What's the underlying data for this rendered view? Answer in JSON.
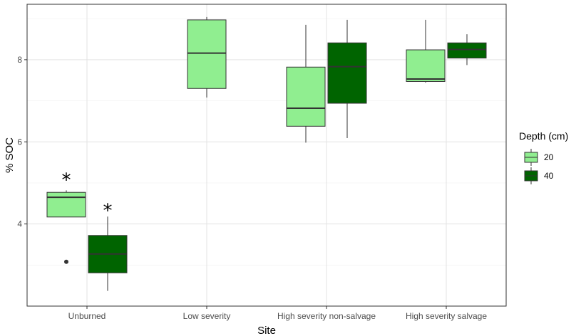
{
  "chart_data": {
    "type": "box",
    "xlabel": "Site",
    "ylabel": "% SOC",
    "categories": [
      "Unburned",
      "Low severity",
      "High severity non-salvage",
      "High severity salvage"
    ],
    "yticks": [
      4,
      6,
      8
    ],
    "ylim": [
      2.0,
      9.35
    ],
    "grid": true,
    "legend": {
      "title": "Depth (cm)",
      "position": "right",
      "entries": [
        {
          "label": "20",
          "color": "#90EE90"
        },
        {
          "label": "40",
          "color": "#006400"
        }
      ]
    },
    "series": [
      {
        "depth": "20",
        "color": "#90EE90",
        "boxes": [
          {
            "category": "Unburned",
            "min": 4.17,
            "q1": 4.17,
            "median": 4.65,
            "q3": 4.77,
            "max": 4.82,
            "outliers": [
              3.08
            ]
          },
          {
            "category": "Low severity",
            "min": 7.08,
            "q1": 7.3,
            "median": 8.16,
            "q3": 8.97,
            "max": 9.04,
            "outliers": []
          },
          {
            "category": "High severity non-salvage",
            "min": 5.98,
            "q1": 6.38,
            "median": 6.82,
            "q3": 7.82,
            "max": 8.85,
            "outliers": []
          },
          {
            "category": "High severity salvage",
            "min": 7.44,
            "q1": 7.47,
            "median": 7.53,
            "q3": 8.24,
            "max": 8.97,
            "outliers": []
          }
        ]
      },
      {
        "depth": "40",
        "color": "#006400",
        "boxes": [
          {
            "category": "Unburned",
            "min": 2.37,
            "q1": 2.81,
            "median": 3.27,
            "q3": 3.72,
            "max": 4.18,
            "outliers": []
          },
          {
            "category": "High severity non-salvage",
            "min": 6.09,
            "q1": 6.94,
            "median": 7.83,
            "q3": 8.41,
            "max": 8.97,
            "outliers": []
          },
          {
            "category": "High severity salvage",
            "min": 7.87,
            "q1": 8.04,
            "median": 8.25,
            "q3": 8.41,
            "max": 8.62,
            "outliers": []
          }
        ]
      }
    ],
    "annotations": [
      {
        "text": "*",
        "category": "Unburned",
        "depth": "20",
        "y": 5.15
      },
      {
        "text": "*",
        "category": "Unburned",
        "depth": "40",
        "y": 4.4
      }
    ]
  }
}
